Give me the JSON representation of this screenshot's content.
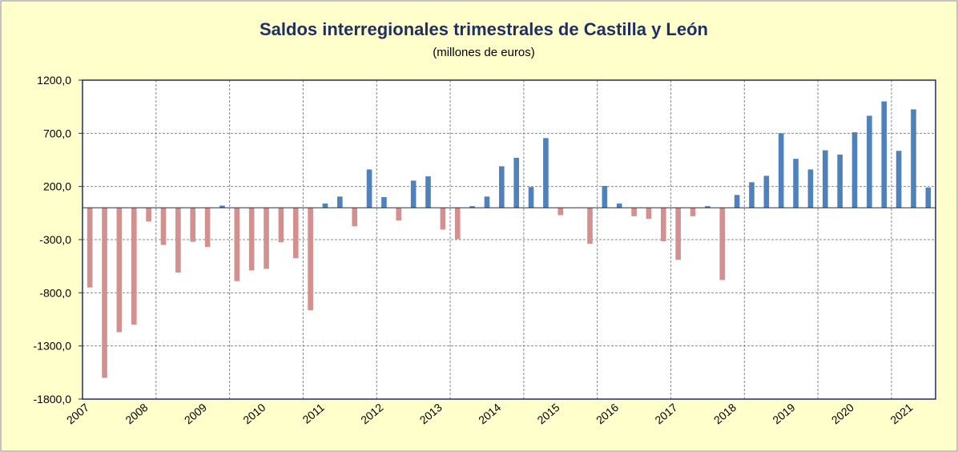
{
  "chart_data": {
    "type": "bar",
    "title": "Saldos interregionales trimestrales de Castilla y León",
    "subtitle": "(millones de euros)",
    "categories": [
      "2007",
      null,
      null,
      null,
      "2008",
      null,
      null,
      null,
      "2009",
      null,
      null,
      null,
      "2010",
      null,
      null,
      null,
      "2011",
      null,
      null,
      null,
      "2012",
      null,
      null,
      null,
      "2013",
      null,
      null,
      null,
      "2014",
      null,
      null,
      null,
      "2015",
      null,
      null,
      null,
      "2016",
      null,
      null,
      null,
      "2017",
      null,
      null,
      null,
      "2018",
      null,
      null,
      null,
      "2019",
      null,
      null,
      null,
      "2020",
      null,
      null,
      null,
      "2021",
      null
    ],
    "values": [
      -750,
      -1600,
      -1170,
      -1100,
      -130,
      -350,
      -610,
      -320,
      -370,
      20,
      -690,
      -590,
      -575,
      -325,
      -475,
      -965,
      40,
      105,
      -175,
      360,
      100,
      -120,
      255,
      295,
      -205,
      -295,
      15,
      105,
      390,
      470,
      195,
      655,
      -70,
      0,
      -340,
      205,
      40,
      -80,
      -105,
      -315,
      -490,
      -80,
      15,
      -680,
      120,
      240,
      300,
      700,
      460,
      360,
      540,
      500,
      710,
      865,
      1000,
      535,
      925,
      190
    ],
    "positive_color": "#4f81bd",
    "negative_color": "#d4908f",
    "ylim": [
      -1800,
      1200
    ],
    "yticks": [
      {
        "value": 1200,
        "label": "1200,0"
      },
      {
        "value": 700,
        "label": "700,0"
      },
      {
        "value": 200,
        "label": "200,0"
      },
      {
        "value": -300,
        "label": "-300,0"
      },
      {
        "value": -800,
        "label": "-800,0"
      },
      {
        "value": -1300,
        "label": "-1300,0"
      },
      {
        "value": -1800,
        "label": "-1800,0"
      }
    ],
    "grid": true,
    "xgrid_interval": 5
  }
}
